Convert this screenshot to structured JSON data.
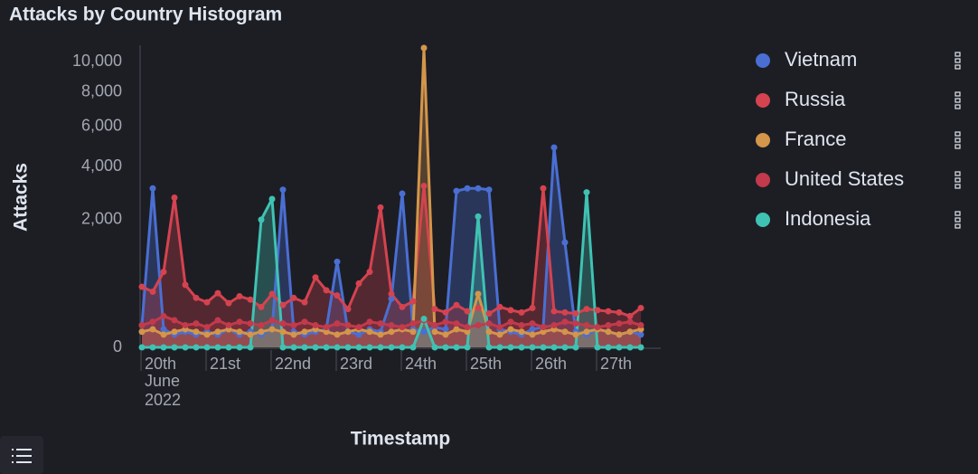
{
  "chart_data": {
    "type": "area",
    "title": "Attacks by Country Histogram",
    "y_label": "Attacks",
    "x_label": "Timestamp",
    "x_date_label": [
      "June",
      "2022"
    ],
    "y_scale": "sqrt",
    "ylim": [
      0,
      11200
    ],
    "yticks": [
      0,
      {
        "value": 2000,
        "label": "2,000"
      },
      {
        "value": 4000,
        "label": "4,000"
      },
      {
        "value": 6000,
        "label": "6,000"
      },
      {
        "value": 8000,
        "label": "8,000"
      },
      {
        "value": 10000,
        "label": "10,000"
      }
    ],
    "legend": "right",
    "categories": [
      "20th",
      null,
      null,
      null,
      null,
      null,
      "21st",
      null,
      null,
      null,
      null,
      null,
      "22nd",
      null,
      null,
      null,
      null,
      null,
      "23rd",
      null,
      null,
      null,
      null,
      null,
      "24th",
      null,
      null,
      null,
      null,
      null,
      "25th",
      null,
      null,
      null,
      null,
      null,
      "26th",
      null,
      null,
      null,
      null,
      null,
      "27th",
      null,
      null,
      null,
      null
    ],
    "series": [
      {
        "name": "Vietnam",
        "color": "#4a6fd3",
        "values": [
          60,
          3100,
          40,
          20,
          30,
          20,
          30,
          20,
          40,
          20,
          30,
          20,
          40,
          3050,
          30,
          20,
          30,
          40,
          900,
          30,
          20,
          40,
          30,
          290,
          2900,
          40,
          30,
          50,
          40,
          3000,
          3100,
          3100,
          3050,
          40,
          30,
          20,
          40,
          50,
          4900,
          1350,
          30,
          20,
          40,
          30,
          20,
          30,
          20
        ]
      },
      {
        "name": "Russia",
        "color": "#d4434f",
        "values": [
          450,
          380,
          700,
          2750,
          480,
          300,
          250,
          360,
          240,
          320,
          280,
          200,
          350,
          220,
          300,
          250,
          600,
          400,
          330,
          180,
          500,
          700,
          2400,
          350,
          200,
          260,
          3200,
          180,
          150,
          220,
          160,
          190,
          140,
          200,
          170,
          150,
          190,
          3100,
          160,
          150,
          140,
          180,
          170,
          160,
          150,
          120,
          190
        ]
      },
      {
        "name": "France",
        "color": "#d3964a",
        "values": [
          30,
          40,
          20,
          30,
          40,
          30,
          20,
          30,
          40,
          30,
          20,
          30,
          40,
          30,
          20,
          30,
          40,
          30,
          20,
          30,
          40,
          30,
          20,
          30,
          40,
          30,
          11000,
          30,
          20,
          40,
          30,
          350,
          30,
          20,
          40,
          30,
          20,
          30,
          40,
          30,
          20,
          30,
          40,
          30,
          20,
          30,
          40
        ]
      },
      {
        "name": "United States",
        "color": "#c23a4b",
        "values": [
          60,
          80,
          120,
          90,
          60,
          70,
          50,
          90,
          60,
          80,
          70,
          60,
          90,
          70,
          60,
          80,
          60,
          50,
          70,
          60,
          50,
          80,
          70,
          60,
          50,
          70,
          90,
          60,
          80,
          70,
          50,
          60,
          70,
          50,
          80,
          60,
          70,
          50,
          60,
          80,
          70,
          60,
          50,
          60,
          70,
          80,
          60
        ]
      },
      {
        "name": "Indonesia",
        "color": "#3fc2b3",
        "values": [
          0,
          0,
          0,
          0,
          0,
          0,
          0,
          0,
          0,
          0,
          0,
          2000,
          2700,
          0,
          0,
          0,
          0,
          0,
          0,
          0,
          0,
          0,
          0,
          0,
          0,
          0,
          100,
          0,
          0,
          0,
          0,
          2100,
          0,
          0,
          0,
          0,
          0,
          0,
          0,
          0,
          0,
          2950,
          0,
          0,
          0,
          0,
          0
        ]
      }
    ]
  }
}
